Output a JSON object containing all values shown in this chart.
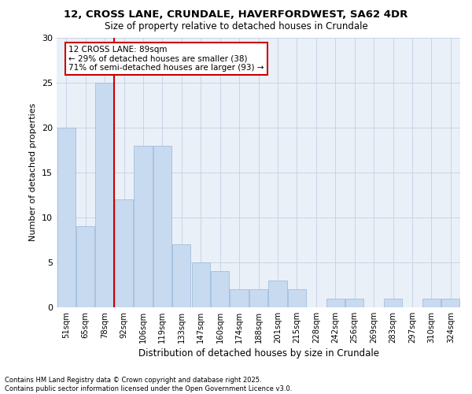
{
  "title_line1": "12, CROSS LANE, CRUNDALE, HAVERFORDWEST, SA62 4DR",
  "title_line2": "Size of property relative to detached houses in Crundale",
  "xlabel": "Distribution of detached houses by size in Crundale",
  "ylabel": "Number of detached properties",
  "categories": [
    "51sqm",
    "65sqm",
    "78sqm",
    "92sqm",
    "106sqm",
    "119sqm",
    "133sqm",
    "147sqm",
    "160sqm",
    "174sqm",
    "188sqm",
    "201sqm",
    "215sqm",
    "228sqm",
    "242sqm",
    "256sqm",
    "269sqm",
    "283sqm",
    "297sqm",
    "310sqm",
    "324sqm"
  ],
  "values": [
    20,
    9,
    25,
    12,
    18,
    18,
    7,
    5,
    4,
    2,
    2,
    3,
    2,
    0,
    1,
    1,
    0,
    1,
    0,
    1,
    1
  ],
  "bar_color": "#c8daf0",
  "bar_edge_color": "#a0bede",
  "vline_x": 3.0,
  "annotation_line1": "12 CROSS LANE: 89sqm",
  "annotation_line2": "← 29% of detached houses are smaller (38)",
  "annotation_line3": "71% of semi-detached houses are larger (93) →",
  "annotation_box_color": "#ffffff",
  "annotation_box_edge": "#cc0000",
  "vline_color": "#cc0000",
  "ylim": [
    0,
    30
  ],
  "yticks": [
    0,
    5,
    10,
    15,
    20,
    25,
    30
  ],
  "grid_color": "#c8d4e4",
  "bg_color": "#eaf0f8",
  "footer_line1": "Contains HM Land Registry data © Crown copyright and database right 2025.",
  "footer_line2": "Contains public sector information licensed under the Open Government Licence v3.0."
}
